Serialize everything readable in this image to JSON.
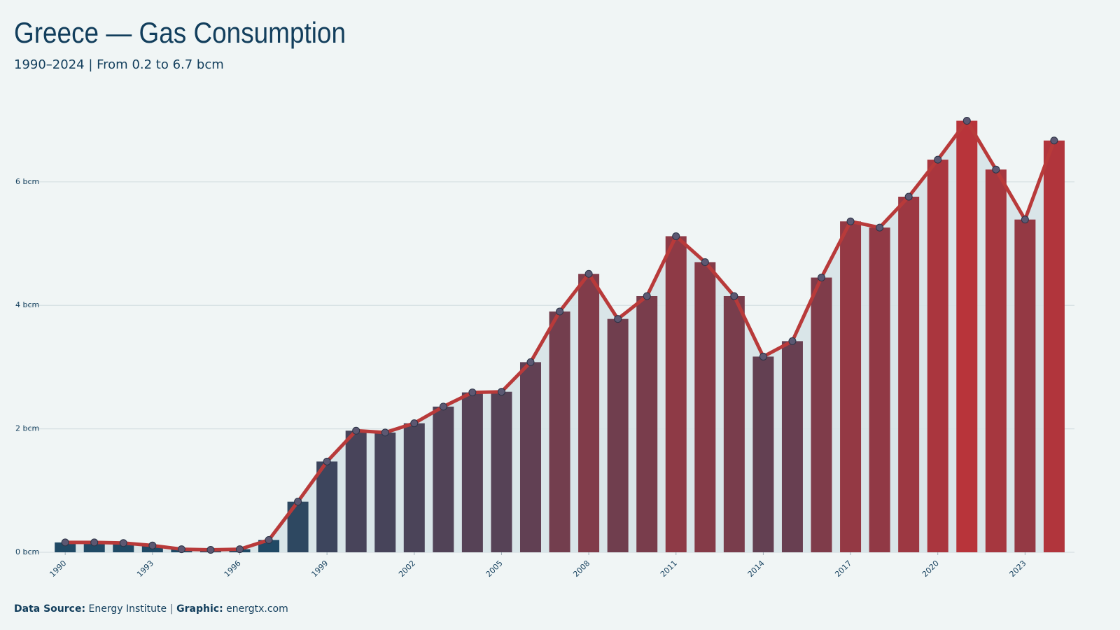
{
  "chart_data": {
    "type": "bar-line",
    "title": "Greece — Gas Consumption",
    "subtitle": "1990–2024 | From 0.2 to 6.7 bcm",
    "x": [
      1990,
      1991,
      1992,
      1993,
      1994,
      1995,
      1996,
      1997,
      1998,
      1999,
      2000,
      2001,
      2002,
      2003,
      2004,
      2005,
      2006,
      2007,
      2008,
      2009,
      2010,
      2011,
      2012,
      2013,
      2014,
      2015,
      2016,
      2017,
      2018,
      2019,
      2020,
      2021,
      2022,
      2023,
      2024
    ],
    "values": [
      0.16,
      0.16,
      0.15,
      0.11,
      0.05,
      0.04,
      0.05,
      0.2,
      0.82,
      1.47,
      1.97,
      1.94,
      2.09,
      2.36,
      2.59,
      2.6,
      3.08,
      3.9,
      4.51,
      3.78,
      4.15,
      5.12,
      4.7,
      4.15,
      3.17,
      3.42,
      4.45,
      5.36,
      5.26,
      5.76,
      6.36,
      6.99,
      6.2,
      5.39,
      6.67
    ],
    "xlim": [
      1988.6,
      2024.7
    ],
    "xticks": [
      1990,
      1993,
      1996,
      1999,
      2002,
      2005,
      2008,
      2011,
      2014,
      2017,
      2020,
      2023
    ],
    "ylim": [
      0,
      7.2
    ],
    "yticks": [
      {
        "value": 0,
        "label": "0 bcm"
      },
      {
        "value": 2,
        "label": "2 bcm"
      },
      {
        "value": 4,
        "label": "4 bcm"
      },
      {
        "value": 6,
        "label": "6 bcm"
      }
    ],
    "grid": true,
    "color_low": "#1d4a66",
    "color_high": "#b8343a",
    "line_color": "#b83a3a",
    "area_color": "#d6e3e7",
    "footer": {
      "source_label": "Data Source:",
      "source": "Energy Institute",
      "separator": "|",
      "graphic_label": "Graphic:",
      "graphic": "energtx.com"
    }
  }
}
